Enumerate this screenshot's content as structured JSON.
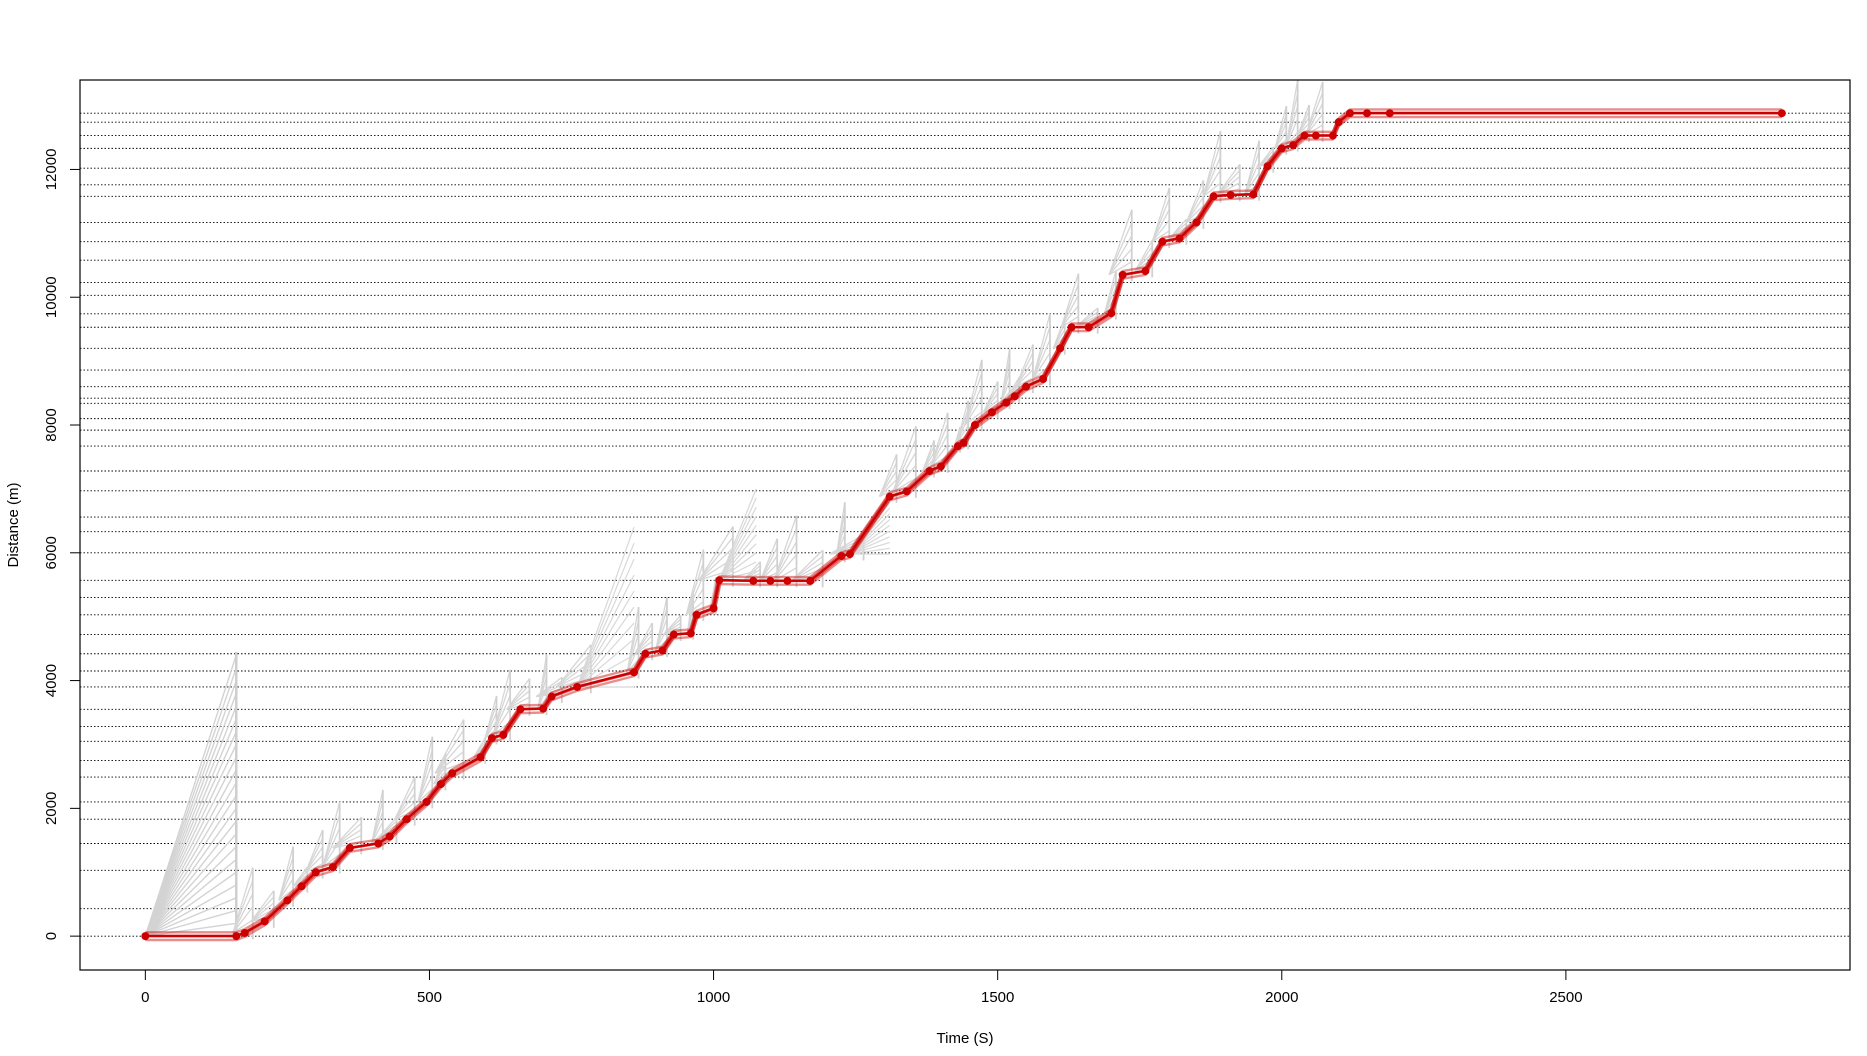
{
  "chart_data": {
    "type": "line",
    "title": "",
    "xlabel": "Time (S)",
    "ylabel": "Distance (m)",
    "xlim": [
      -115,
      3000
    ],
    "ylim": [
      -530,
      13400
    ],
    "x_ticks": [
      0,
      500,
      1000,
      1500,
      2000,
      2500
    ],
    "y_ticks": [
      0,
      2000,
      4000,
      6000,
      8000,
      10000,
      12000
    ],
    "grid": "horizontal dotted lines at station distances",
    "station_distances": [
      0,
      430,
      1030,
      1450,
      1830,
      2100,
      2490,
      2750,
      3050,
      3280,
      3550,
      3900,
      4150,
      4420,
      4720,
      5030,
      5300,
      5570,
      6000,
      6330,
      6560,
      6970,
      7280,
      7670,
      7920,
      8100,
      8340,
      8420,
      8600,
      8860,
      9200,
      9530,
      9740,
      10030,
      10230,
      10580,
      10870,
      11170,
      11580,
      11760,
      12020,
      12330,
      12530,
      12740,
      12880
    ],
    "series": [
      {
        "color": "#cc0000",
        "values": [
          [
            0,
            0
          ],
          [
            160,
            0
          ],
          [
            175,
            50
          ],
          [
            210,
            230
          ],
          [
            250,
            560
          ],
          [
            275,
            780
          ],
          [
            300,
            1000
          ],
          [
            330,
            1080
          ],
          [
            360,
            1380
          ],
          [
            410,
            1450
          ],
          [
            430,
            1560
          ],
          [
            460,
            1830
          ],
          [
            495,
            2100
          ],
          [
            520,
            2380
          ],
          [
            540,
            2550
          ],
          [
            590,
            2800
          ],
          [
            610,
            3100
          ],
          [
            630,
            3150
          ],
          [
            660,
            3550
          ],
          [
            700,
            3560
          ],
          [
            715,
            3750
          ],
          [
            760,
            3900
          ],
          [
            860,
            4130
          ],
          [
            880,
            4420
          ],
          [
            910,
            4470
          ],
          [
            930,
            4720
          ],
          [
            960,
            4740
          ],
          [
            970,
            5030
          ],
          [
            1000,
            5130
          ],
          [
            1010,
            5570
          ],
          [
            1070,
            5560
          ],
          [
            1100,
            5560
          ],
          [
            1130,
            5560
          ],
          [
            1170,
            5560
          ],
          [
            1225,
            5950
          ],
          [
            1240,
            5980
          ],
          [
            1310,
            6880
          ],
          [
            1340,
            6960
          ],
          [
            1380,
            7280
          ],
          [
            1400,
            7350
          ],
          [
            1430,
            7670
          ],
          [
            1440,
            7720
          ],
          [
            1460,
            8000
          ],
          [
            1490,
            8200
          ],
          [
            1515,
            8350
          ],
          [
            1530,
            8450
          ],
          [
            1550,
            8600
          ],
          [
            1580,
            8720
          ],
          [
            1610,
            9200
          ],
          [
            1630,
            9530
          ],
          [
            1660,
            9530
          ],
          [
            1700,
            9750
          ],
          [
            1720,
            10350
          ],
          [
            1760,
            10410
          ],
          [
            1790,
            10870
          ],
          [
            1820,
            10920
          ],
          [
            1850,
            11170
          ],
          [
            1880,
            11580
          ],
          [
            1910,
            11600
          ],
          [
            1950,
            11610
          ],
          [
            1975,
            12050
          ],
          [
            2000,
            12330
          ],
          [
            2020,
            12380
          ],
          [
            2040,
            12530
          ],
          [
            2060,
            12530
          ],
          [
            2090,
            12530
          ],
          [
            2100,
            12740
          ],
          [
            2120,
            12880
          ],
          [
            2150,
            12880
          ],
          [
            2190,
            12880
          ],
          [
            2880,
            12880
          ]
        ]
      }
    ]
  }
}
